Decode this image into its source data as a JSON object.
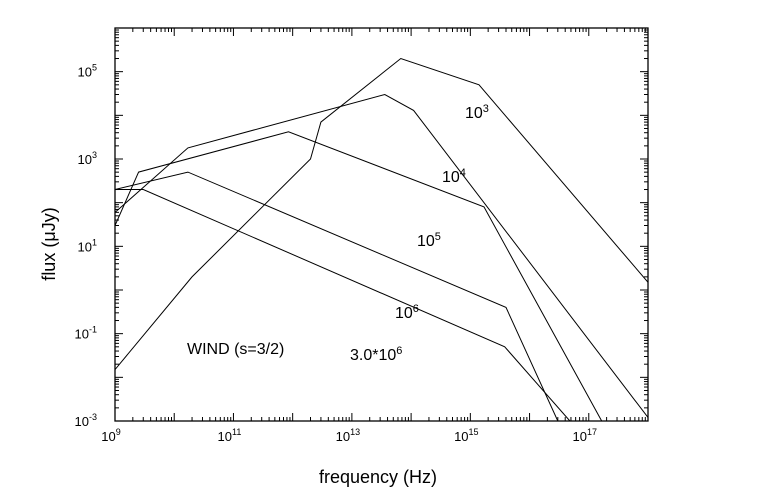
{
  "chart_data": {
    "type": "line",
    "title": "",
    "xlabel": "frequency (Hz)",
    "ylabel": "flux (μJy)",
    "xscale": "log",
    "yscale": "log",
    "xlim": [
      1000000000.0,
      1e+18
    ],
    "ylim": [
      0.001,
      1000000
    ],
    "grid": false,
    "x_ticks": [
      {
        "value": 1000000000.0,
        "base": "10",
        "exp": "9"
      },
      {
        "value": 100000000000.0,
        "base": "10",
        "exp": "11"
      },
      {
        "value": 10000000000000.0,
        "base": "10",
        "exp": "13"
      },
      {
        "value": 1000000000000000.0,
        "base": "10",
        "exp": "15"
      },
      {
        "value": 1e+17,
        "base": "10",
        "exp": "17"
      }
    ],
    "y_ticks": [
      {
        "value": 0.001,
        "base": "10",
        "exp": "-3"
      },
      {
        "value": 0.1,
        "base": "10",
        "exp": "-1"
      },
      {
        "value": 10,
        "base": "10",
        "exp": "1"
      },
      {
        "value": 1000,
        "base": "10",
        "exp": "3"
      },
      {
        "value": 100000,
        "base": "10",
        "exp": "5"
      }
    ],
    "annotation": "WIND (s=3/2)",
    "series": [
      {
        "name": "10^3",
        "label_base": "10",
        "label_exp": "3",
        "x": [
          1000000000.0,
          20000000000.0,
          2000000000000.0,
          3000000000000.0,
          67000000000000.0,
          1400000000000000.0,
          1e+18
        ],
        "y": [
          0.015,
          2,
          1000,
          7000,
          200000,
          50000,
          1.5
        ]
      },
      {
        "name": "10^4",
        "label_base": "10",
        "label_exp": "4",
        "x": [
          1000000000.0,
          17000000000.0,
          36000000000000.0,
          110000000000000.0,
          1e+18
        ],
        "y": [
          60,
          1800,
          30000,
          13000,
          0.0012
        ]
      },
      {
        "name": "10^5",
        "label_base": "10",
        "label_exp": "5",
        "x": [
          1000000000.0,
          2500000000.0,
          850000000000.0,
          1700000000000000.0,
          1.65e+17
        ],
        "y": [
          30,
          500,
          4200,
          80,
          0.001
        ]
      },
      {
        "name": "10^6",
        "label_base": "10",
        "label_exp": "6",
        "x": [
          1000000000.0,
          17000000000.0,
          4000000000000000.0,
          3e+16
        ],
        "y": [
          200,
          500,
          0.4,
          0.001
        ]
      },
      {
        "name": "3.0*10^6",
        "label_base": "3.0*10",
        "label_exp": "6",
        "x": [
          1000000000.0,
          3000000000.0,
          3800000000000000.0,
          4.8e+16
        ],
        "y": [
          200,
          200,
          0.05,
          0.001
        ]
      }
    ]
  }
}
